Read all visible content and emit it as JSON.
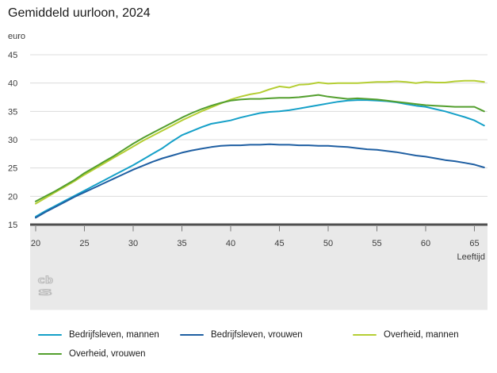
{
  "page": {
    "title": "Gemiddeld uurloon, 2024",
    "unit_label": "euro",
    "age_label": "Leeftijd",
    "logo": "cbs-logo"
  },
  "chart_data": {
    "type": "line",
    "title": "Gemiddeld uurloon, 2024",
    "ylabel": "euro",
    "xlabel": "Leeftijd",
    "grid": true,
    "legend_position": "bottom",
    "x_axis": {
      "min": 20,
      "max": 66,
      "ticks": [
        20,
        25,
        30,
        35,
        40,
        45,
        50,
        55,
        60,
        65
      ]
    },
    "y_axis": {
      "min": 15,
      "max": 45,
      "ticks": [
        15,
        20,
        25,
        30,
        35,
        40,
        45
      ]
    },
    "ages": [
      20,
      21,
      22,
      23,
      24,
      25,
      26,
      27,
      28,
      29,
      30,
      31,
      32,
      33,
      34,
      35,
      36,
      37,
      38,
      39,
      40,
      41,
      42,
      43,
      44,
      45,
      46,
      47,
      48,
      49,
      50,
      51,
      52,
      53,
      54,
      55,
      56,
      57,
      58,
      59,
      60,
      61,
      62,
      63,
      64,
      65,
      66
    ],
    "series": [
      {
        "name": "Bedrijfsleven, mannen",
        "color": "#15a0c8",
        "values": [
          16.4,
          17.4,
          18.3,
          19.2,
          20.1,
          21.0,
          21.9,
          22.8,
          23.7,
          24.6,
          25.5,
          26.5,
          27.5,
          28.5,
          29.7,
          30.8,
          31.5,
          32.2,
          32.8,
          33.1,
          33.4,
          33.9,
          34.3,
          34.7,
          34.9,
          35.0,
          35.2,
          35.5,
          35.8,
          36.1,
          36.4,
          36.7,
          36.9,
          37.0,
          37.0,
          36.9,
          36.8,
          36.6,
          36.3,
          36.0,
          35.8,
          35.4,
          35.0,
          34.5,
          34.0,
          33.4,
          32.5
        ]
      },
      {
        "name": "Bedrijfsleven, vrouwen",
        "color": "#1f5fa2",
        "values": [
          16.2,
          17.2,
          18.1,
          19.0,
          19.9,
          20.7,
          21.5,
          22.3,
          23.1,
          23.9,
          24.7,
          25.4,
          26.1,
          26.7,
          27.2,
          27.7,
          28.1,
          28.4,
          28.7,
          28.9,
          29.0,
          29.0,
          29.1,
          29.1,
          29.2,
          29.1,
          29.1,
          29.0,
          29.0,
          28.9,
          28.9,
          28.8,
          28.7,
          28.5,
          28.3,
          28.2,
          28.0,
          27.8,
          27.5,
          27.2,
          27.0,
          26.7,
          26.4,
          26.2,
          25.9,
          25.6,
          25.1
        ]
      },
      {
        "name": "Overheid, mannen",
        "color": "#b5ce34",
        "values": [
          18.7,
          19.7,
          20.7,
          21.7,
          22.7,
          23.8,
          24.8,
          25.8,
          26.8,
          27.8,
          28.8,
          29.8,
          30.7,
          31.6,
          32.5,
          33.4,
          34.2,
          35.0,
          35.7,
          36.4,
          37.1,
          37.6,
          38.0,
          38.3,
          38.9,
          39.4,
          39.2,
          39.7,
          39.8,
          40.1,
          39.9,
          40.0,
          40.0,
          40.0,
          40.1,
          40.2,
          40.2,
          40.3,
          40.2,
          40.0,
          40.2,
          40.1,
          40.1,
          40.3,
          40.4,
          40.4,
          40.2
        ]
      },
      {
        "name": "Overheid, vrouwen",
        "color": "#539f2e",
        "values": [
          19.1,
          20.0,
          20.9,
          21.9,
          22.9,
          24.1,
          25.1,
          26.1,
          27.1,
          28.2,
          29.3,
          30.3,
          31.2,
          32.1,
          33.0,
          33.9,
          34.7,
          35.4,
          36.0,
          36.5,
          36.9,
          37.1,
          37.2,
          37.2,
          37.3,
          37.4,
          37.4,
          37.5,
          37.7,
          37.9,
          37.6,
          37.4,
          37.2,
          37.3,
          37.2,
          37.1,
          36.9,
          36.7,
          36.5,
          36.3,
          36.1,
          36.0,
          35.9,
          35.8,
          35.8,
          35.8,
          35.0
        ]
      }
    ],
    "colors": {
      "gridline": "#dcdcdc",
      "baseline": "#4f4f4f",
      "axis_band": "#e9e9e9",
      "tick": "#7a7a7a",
      "axis_text": "#3c3c3c",
      "logo_gray": "#bdbdbd"
    }
  }
}
